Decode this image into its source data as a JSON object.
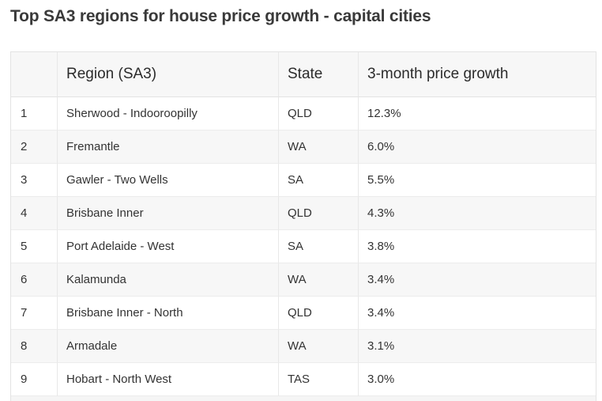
{
  "title": "Top SA3 regions for house price growth - capital cities",
  "chart_data": {
    "type": "table",
    "title": "Top SA3 regions for house price growth - capital cities",
    "columns": [
      "",
      "Region (SA3)",
      "State",
      "3-month price growth"
    ],
    "rows": [
      {
        "rank": "1",
        "region": "Sherwood - Indooroopilly",
        "state": "QLD",
        "growth": "12.3%"
      },
      {
        "rank": "2",
        "region": "Fremantle",
        "state": "WA",
        "growth": "6.0%"
      },
      {
        "rank": "3",
        "region": "Gawler - Two Wells",
        "state": "SA",
        "growth": "5.5%"
      },
      {
        "rank": "4",
        "region": "Brisbane Inner",
        "state": "QLD",
        "growth": "4.3%"
      },
      {
        "rank": "5",
        "region": "Port Adelaide - West",
        "state": "SA",
        "growth": "3.8%"
      },
      {
        "rank": "6",
        "region": "Kalamunda",
        "state": "WA",
        "growth": "3.4%"
      },
      {
        "rank": "7",
        "region": "Brisbane Inner - North",
        "state": "QLD",
        "growth": "3.4%"
      },
      {
        "rank": "8",
        "region": "Armadale",
        "state": "WA",
        "growth": "3.1%"
      },
      {
        "rank": "9",
        "region": "Hobart - North West",
        "state": "TAS",
        "growth": "3.0%"
      }
    ]
  }
}
